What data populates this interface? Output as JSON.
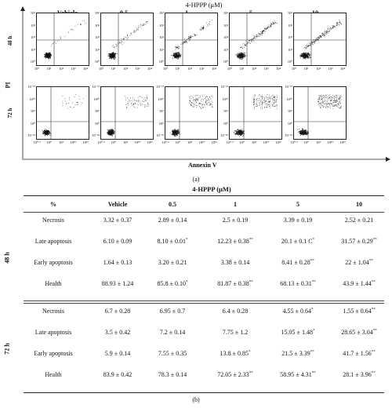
{
  "figure": {
    "title": "4-HPPP (μM)",
    "concentrations": [
      "Vehicle",
      "0.5",
      "1",
      "5",
      "10"
    ],
    "row_labels": [
      "48 h",
      "72 h"
    ],
    "y_axis_label": "PI",
    "x_axis_label": "Annexin V",
    "caption_a": "(a)",
    "caption_b": "(b)",
    "ticks_48h_y": [
      "10⁴",
      "10³",
      "10²",
      "10¹",
      "10⁰"
    ],
    "ticks_48h_x": [
      "10⁰",
      "10¹",
      "10²",
      "10³",
      "10⁴"
    ],
    "ticks_72h_y": [
      "10⁻¹²",
      "10¹⁰",
      "10⁵",
      "10⁰",
      "10⁻¹⁸"
    ],
    "ticks_72h_x": [
      "10⁰·²",
      "10⁰",
      "10⁵",
      "10¹⁰",
      "10¹²"
    ]
  },
  "table": {
    "title": "4-HPPP (μM)",
    "percent_label": "%",
    "columns": [
      "Vehicle",
      "0.5",
      "1",
      "5",
      "10"
    ],
    "groups": [
      {
        "label": "48 h",
        "rows": [
          {
            "name": "Necrosis",
            "values": [
              "3.32 ± 0.37",
              "2.89 ± 0.14",
              "2.5 ± 0.19",
              "3.39 ± 0.19",
              "2.52 ± 0.21"
            ],
            "sig": [
              "",
              "",
              "",
              "",
              ""
            ]
          },
          {
            "name": "Late apoptosis",
            "values": [
              "6.10 ± 0.09",
              "8.10 ± 0.01",
              "12.23 ± 0.38",
              "20.1 ± 0.1 C",
              "31.57 ± 0.29"
            ],
            "sig": [
              "",
              "*",
              "**",
              "*",
              "**"
            ]
          },
          {
            "name": "Early apoptosis",
            "values": [
              "1.64 ± 0.13",
              "3.20 ± 0.21",
              "3.38 ± 0.14",
              "8.41 ± 0.28",
              "22 ± 1.04"
            ],
            "sig": [
              "",
              "",
              "",
              "**",
              "**"
            ]
          },
          {
            "name": "Health",
            "values": [
              "88.93 ± 1.24",
              "85.8 ± 0.10",
              "81.87 ± 0.38",
              "68.13 ± 0.31",
              "43.9 ± 1.44"
            ],
            "sig": [
              "",
              "*",
              "**",
              "**",
              "**"
            ]
          }
        ]
      },
      {
        "label": "72 h",
        "rows": [
          {
            "name": "Necrosis",
            "values": [
              "6.7 ± 0.28",
              "6.95 ± 0.7",
              "6.4 ± 0.28",
              "4.55 ± 0.64",
              "1.55 ± 0.64"
            ],
            "sig": [
              "",
              "",
              "",
              "*",
              "**"
            ]
          },
          {
            "name": "Late apoptosis",
            "values": [
              "3.5 ± 0.42",
              "7.2 ± 0.14",
              "7.75 ± 1.2",
              "15.05 ± 1.48",
              "28.65 ± 3.04"
            ],
            "sig": [
              "",
              "",
              "",
              "*",
              "**"
            ]
          },
          {
            "name": "Early apoptosis",
            "values": [
              "5.9 ± 0.14",
              "7.55 ± 0.35",
              "13.8 ± 0.85",
              "21.5 ± 3.39",
              "41.7 ± 1.56"
            ],
            "sig": [
              "",
              "",
              "*",
              "**",
              "**"
            ]
          },
          {
            "name": "Health",
            "values": [
              "83.9 ± 0.42",
              "78.3 ± 0.14",
              "72.05 ± 2.33",
              "58.95 ± 4.31",
              "28.1 ± 3.96"
            ],
            "sig": [
              "",
              "",
              "**",
              "**",
              "**"
            ]
          }
        ]
      }
    ]
  }
}
